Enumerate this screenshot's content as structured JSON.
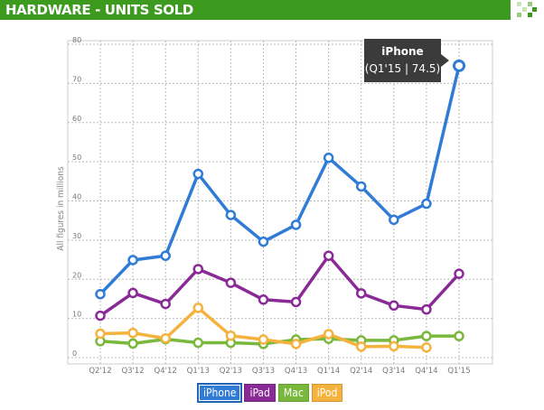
{
  "header": {
    "title": "HARDWARE - UNITS SOLD",
    "logo_icon": "checker-logo-icon"
  },
  "colors": {
    "header_bg": "#3c9a1f",
    "iPhone": "#2f7bd6",
    "iPad": "#8a2a96",
    "Mac": "#7ab83d",
    "iPod": "#f5b23d"
  },
  "tooltip": {
    "title": "iPhone",
    "value": "(Q1'15 | 74.5)"
  },
  "chart_data": {
    "type": "line",
    "ylabel": "All figures in millions",
    "ylim": [
      0,
      80
    ],
    "yticks": [
      "0",
      "10",
      "20",
      "30",
      "40",
      "50",
      "60",
      "70",
      "80"
    ],
    "grid": true,
    "legend_position": "bottom-center",
    "categories": [
      "Q2'12",
      "Q3'12",
      "Q4'12",
      "Q1'13",
      "Q2'13",
      "Q3'13",
      "Q4'13",
      "Q1'14",
      "Q2'14",
      "Q3'14",
      "Q4'14",
      "Q1'15"
    ],
    "series": [
      {
        "name": "iPhone",
        "color": "#2f7bd6",
        "values": [
          16.2,
          24.9,
          26.0,
          46.9,
          36.4,
          29.6,
          33.9,
          51.0,
          43.7,
          35.2,
          39.3,
          74.5
        ]
      },
      {
        "name": "iPad",
        "color": "#8a2a96",
        "values": [
          10.7,
          16.5,
          13.7,
          22.6,
          19.1,
          14.8,
          14.2,
          26.0,
          16.4,
          13.3,
          12.3,
          21.4
        ]
      },
      {
        "name": "Mac",
        "color": "#7ab83d",
        "values": [
          4.2,
          3.6,
          4.7,
          3.8,
          3.8,
          3.5,
          4.6,
          4.8,
          4.4,
          4.4,
          5.5,
          5.5
        ]
      },
      {
        "name": "iPod",
        "color": "#f5b23d",
        "values": [
          6.1,
          6.3,
          4.9,
          12.7,
          5.6,
          4.6,
          3.5,
          6.0,
          2.8,
          2.9,
          2.6,
          null
        ]
      }
    ]
  }
}
